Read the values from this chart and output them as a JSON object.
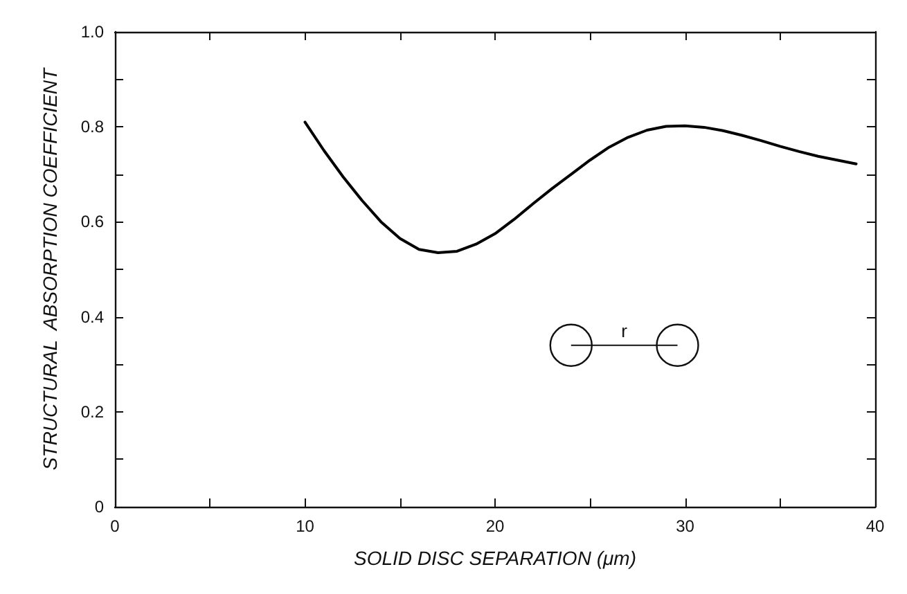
{
  "chart_data": {
    "type": "line",
    "xlabel": "SOLID DISC SEPARATION (μm)",
    "ylabel": "STRUCTURAL  ABSORPTION COEFFICIENT",
    "x": [
      10,
      11,
      12,
      13,
      14,
      15,
      16,
      17,
      18,
      19,
      20,
      21,
      22,
      23,
      24,
      25,
      26,
      27,
      28,
      29,
      30,
      31,
      32,
      33,
      34,
      35,
      36,
      37,
      38,
      39
    ],
    "series": [
      {
        "color": "#000000",
        "values": [
          0.81,
          0.75,
          0.695,
          0.645,
          0.6,
          0.565,
          0.542,
          0.535,
          0.538,
          0.553,
          0.575,
          0.605,
          0.638,
          0.67,
          0.7,
          0.73,
          0.757,
          0.778,
          0.793,
          0.801,
          0.802,
          0.799,
          0.792,
          0.782,
          0.771,
          0.759,
          0.748,
          0.738,
          0.73,
          0.722
        ]
      }
    ],
    "xlim": [
      0,
      40
    ],
    "xticks": [
      0,
      {
        "value": 5,
        "label": null
      },
      10,
      {
        "value": 15,
        "label": null
      },
      20,
      {
        "value": 25,
        "label": null
      },
      30,
      {
        "value": 35,
        "label": null
      },
      40
    ],
    "ylim": [
      0,
      1
    ],
    "yticks": [
      0,
      {
        "value": 0.1,
        "label": null
      },
      0.2,
      {
        "value": 0.3,
        "label": null
      },
      0.4,
      {
        "value": 0.5,
        "label": null
      },
      0.6,
      {
        "value": 0.7,
        "label": null
      },
      0.8,
      {
        "value": 0.9,
        "label": null
      },
      {
        "value": 1,
        "label": "1.0"
      }
    ],
    "annotations": [
      "r"
    ],
    "grid": false,
    "marker": "none",
    "line_style": "solid"
  }
}
